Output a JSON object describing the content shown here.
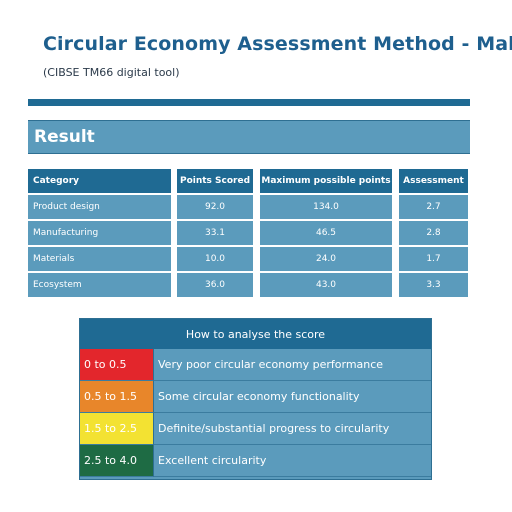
{
  "header": {
    "title": "Circular Economy Assessment Method - Make",
    "subtitle": "(CIBSE TM66 digital tool)"
  },
  "result": {
    "label": "Result",
    "columns": [
      "Category",
      "Points Scored",
      "Maximum possible points",
      "Assessment"
    ],
    "rows": [
      {
        "category": "Product design",
        "points": "92.0",
        "max": "134.0",
        "assessment": "2.7"
      },
      {
        "category": "Manufacturing",
        "points": "33.1",
        "max": "46.5",
        "assessment": "2.8"
      },
      {
        "category": "Materials",
        "points": "10.0",
        "max": "24.0",
        "assessment": "1.7"
      },
      {
        "category": "Ecosystem",
        "points": "36.0",
        "max": "43.0",
        "assessment": "3.3"
      }
    ]
  },
  "legend": {
    "title": "How to analyse the score",
    "items": [
      {
        "range": "0 to 0.5",
        "description": "Very poor circular economy performance",
        "color": "#e3262c"
      },
      {
        "range": "0.5 to 1.5",
        "description": "Some circular economy functionality",
        "color": "#e8862a"
      },
      {
        "range": "1.5 to 2.5",
        "description": "Definite/substantial progress to circularity",
        "color": "#f3e232"
      },
      {
        "range": "2.5 to 4.0",
        "description": "Excellent circularity",
        "color": "#1e6b44"
      }
    ]
  },
  "colors": {
    "dark_blue": "#1f6a93",
    "mid_blue": "#5b9bbc",
    "title_blue": "#1e5f8e"
  }
}
